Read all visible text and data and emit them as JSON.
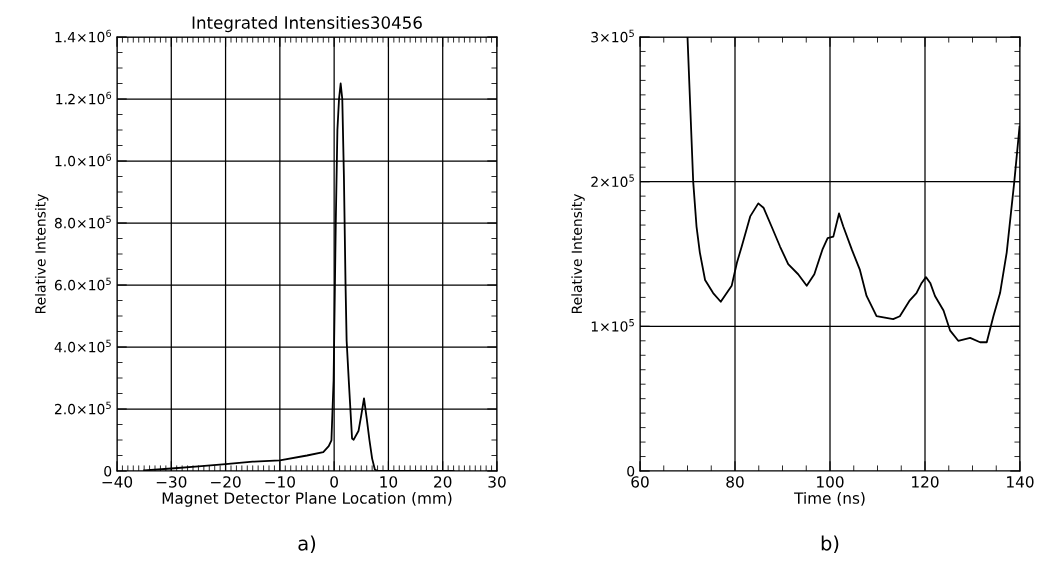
{
  "chart_data": [
    {
      "type": "line",
      "title": "Integrated Intensities30456",
      "xlabel": "Magnet Detector Plane Location (mm)",
      "ylabel": "Relative Intensity",
      "annotations": [
        "a)"
      ],
      "x": [
        -35,
        -30,
        -25,
        -20,
        -15,
        -10,
        -5,
        -2,
        -1,
        -0.5,
        -0.1,
        0.3,
        0.6,
        0.9,
        1.2,
        1.5,
        1.8,
        2.1,
        2.3,
        2.7,
        3.3,
        3.6,
        4.5,
        5.0,
        5.5,
        6.0,
        6.5,
        7.0,
        7.5,
        8.0,
        15,
        22
      ],
      "series": [
        {
          "color": "#000000",
          "values": [
            2000,
            8000,
            15000,
            22000,
            30000,
            34500,
            50000,
            61000,
            80000,
            99000,
            293000,
            800000,
            1100000,
            1200000,
            1250000,
            1200000,
            950000,
            600000,
            420000,
            290000,
            105000,
            101000,
            130000,
            180000,
            234000,
            170000,
            100000,
            40000,
            5000,
            0,
            0,
            0
          ]
        }
      ],
      "xlim": [
        -40,
        30
      ],
      "xticks": [
        {
          "value": -40,
          "label": "−40"
        },
        {
          "value": -30,
          "label": "−30"
        },
        {
          "value": -20,
          "label": "−20"
        },
        {
          "value": -10,
          "label": "−10"
        },
        0,
        10,
        20,
        30
      ],
      "ylim": [
        0,
        1400000
      ],
      "yticks": [
        {
          "value": 0,
          "label": "0"
        },
        {
          "value": 200000,
          "label": "2.0×10$^{5}$"
        },
        {
          "value": 400000,
          "label": "4.0×10$^{5}$"
        },
        {
          "value": 600000,
          "label": "6.0×10$^{5}$"
        },
        {
          "value": 800000,
          "label": "8.0×10$^{5}$"
        },
        {
          "value": 1000000,
          "label": "1.0×10$^{6}$"
        },
        {
          "value": 1200000,
          "label": "1.2×10$^{6}$"
        },
        {
          "value": 1400000,
          "label": "1.4×10$^{6}$"
        }
      ],
      "grid": true,
      "legend": false,
      "marker": "none",
      "line_style": "solid"
    },
    {
      "type": "line",
      "xlabel": "Time (ns)",
      "ylabel": "Relative Intensity",
      "annotations": [
        "b)"
      ],
      "x": [
        70.0,
        71.2,
        71.9,
        72.6,
        73.7,
        75.4,
        77.0,
        79.3,
        80.4,
        81.4,
        83.2,
        84.9,
        86.0,
        87.7,
        89.5,
        91.2,
        93.3,
        95.1,
        96.7,
        98.4,
        99.5,
        100.7,
        101.9,
        102.8,
        104.6,
        106.3,
        107.7,
        109.8,
        113.3,
        114.7,
        116.8,
        118.2,
        119.3,
        120.2,
        121.1,
        122.1,
        123.9,
        125.3,
        127.0,
        129.5,
        131.6,
        133.0,
        134.4,
        135.8,
        137.2,
        138.8,
        139.9
      ],
      "series": [
        {
          "color": "#000000",
          "values": [
            300000,
            200000,
            169000,
            151000,
            132000,
            123000,
            117000,
            128000,
            144000,
            155000,
            176000,
            185000,
            182000,
            169000,
            155000,
            143000,
            136000,
            128000,
            136000,
            153000,
            161000,
            162000,
            178000,
            169000,
            153000,
            139000,
            121000,
            107000,
            105000,
            107000,
            118000,
            123000,
            130000,
            134000,
            130000,
            121000,
            111000,
            97000,
            90000,
            92000,
            89000,
            89000,
            107000,
            123000,
            151000,
            200000,
            238000
          ]
        }
      ],
      "xlim": [
        60,
        140
      ],
      "xticks": [
        60,
        80,
        100,
        120,
        140
      ],
      "ylim": [
        0,
        300000
      ],
      "yticks": [
        {
          "value": 0,
          "label": "0"
        },
        {
          "value": 100000,
          "label": "1×10$^{5}$"
        },
        {
          "value": 200000,
          "label": "2×10$^{5}$"
        },
        {
          "value": 300000,
          "label": "3×10$^{5}$"
        }
      ],
      "grid": true,
      "legend": false,
      "marker": "none",
      "line_style": "solid"
    }
  ]
}
